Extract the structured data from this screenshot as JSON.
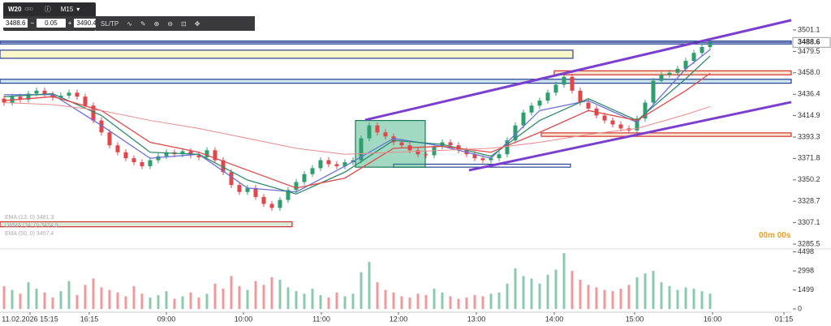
{
  "toolbar": {
    "symbol": "W20",
    "symbol_type": "CFD",
    "timeframe": "M15",
    "bid": "3488.6",
    "minus": "−",
    "lot": "0.05",
    "plus": "+",
    "ask": "3490.4",
    "sltp": "SL/TP"
  },
  "countdown": "00m 00s",
  "chart_data": {
    "type": "candlestick",
    "open": [
      3432,
      3428,
      3434,
      3431,
      3437,
      3440,
      3436,
      3433,
      3435,
      3438,
      3434,
      3425,
      3410,
      3398,
      3385,
      3378,
      3372,
      3368,
      3364,
      3370,
      3374,
      3378,
      3376,
      3379,
      3375,
      3373,
      3380,
      3370,
      3358,
      3345,
      3338,
      3342,
      3333,
      3326,
      3322,
      3330,
      3340,
      3348,
      3356,
      3362,
      3370,
      3366,
      3364,
      3368,
      3370,
      3392,
      3405,
      3398,
      3394,
      3388,
      3385,
      3380,
      3376,
      3375,
      3384,
      3388,
      3385,
      3380,
      3376,
      3372,
      3370,
      3372,
      3376,
      3390,
      3405,
      3418,
      3425,
      3430,
      3438,
      3446,
      3454,
      3440,
      3428,
      3422,
      3415,
      3410,
      3406,
      3402,
      3400,
      3412,
      3428,
      3450,
      3456,
      3458,
      3462,
      3470,
      3478,
      3484
    ],
    "high": [
      3435,
      3437,
      3437,
      3440,
      3443,
      3443,
      3439,
      3438,
      3441,
      3441,
      3437,
      3428,
      3413,
      3401,
      3388,
      3381,
      3375,
      3371,
      3373,
      3377,
      3381,
      3381,
      3382,
      3382,
      3378,
      3383,
      3383,
      3373,
      3361,
      3348,
      3345,
      3345,
      3336,
      3329,
      3333,
      3343,
      3351,
      3359,
      3365,
      3373,
      3373,
      3369,
      3371,
      3373,
      3395,
      3408,
      3408,
      3401,
      3397,
      3391,
      3388,
      3383,
      3379,
      3387,
      3391,
      3391,
      3388,
      3383,
      3379,
      3375,
      3375,
      3379,
      3393,
      3408,
      3421,
      3428,
      3433,
      3441,
      3449,
      3457,
      3457,
      3443,
      3431,
      3425,
      3418,
      3413,
      3409,
      3405,
      3415,
      3431,
      3453,
      3459,
      3461,
      3465,
      3473,
      3481,
      3487,
      3491.6
    ],
    "low": [
      3425,
      3425,
      3428,
      3428,
      3434,
      3433,
      3430,
      3430,
      3432,
      3431,
      3422,
      3407,
      3395,
      3382,
      3375,
      3369,
      3365,
      3361,
      3361,
      3367,
      3371,
      3373,
      3373,
      3372,
      3370,
      3370,
      3367,
      3355,
      3342,
      3335,
      3335,
      3330,
      3323,
      3319,
      3319,
      3327,
      3337,
      3345,
      3353,
      3359,
      3363,
      3361,
      3361,
      3365,
      3367,
      3389,
      3395,
      3391,
      3385,
      3382,
      3377,
      3373,
      3372,
      3372,
      3381,
      3382,
      3377,
      3373,
      3369,
      3367,
      3367,
      3369,
      3373,
      3387,
      3402,
      3415,
      3422,
      3427,
      3435,
      3443,
      3437,
      3425,
      3419,
      3412,
      3407,
      3403,
      3399,
      3397,
      3397,
      3409,
      3425,
      3447,
      3453,
      3455,
      3459,
      3467,
      3475,
      3481
    ],
    "close": [
      3428,
      3434,
      3431,
      3437,
      3440,
      3436,
      3433,
      3435,
      3438,
      3434,
      3425,
      3410,
      3398,
      3385,
      3378,
      3372,
      3368,
      3364,
      3370,
      3374,
      3378,
      3376,
      3379,
      3375,
      3373,
      3380,
      3370,
      3358,
      3345,
      3338,
      3342,
      3333,
      3326,
      3322,
      3330,
      3340,
      3348,
      3356,
      3362,
      3370,
      3366,
      3364,
      3368,
      3370,
      3392,
      3405,
      3398,
      3394,
      3388,
      3385,
      3380,
      3376,
      3375,
      3384,
      3388,
      3385,
      3380,
      3376,
      3372,
      3370,
      3372,
      3376,
      3390,
      3405,
      3418,
      3425,
      3430,
      3438,
      3446,
      3454,
      3440,
      3428,
      3422,
      3415,
      3410,
      3406,
      3402,
      3400,
      3412,
      3428,
      3450,
      3456,
      3458,
      3462,
      3470,
      3478,
      3484,
      3488.6
    ],
    "volume": [
      1800,
      1500,
      1200,
      2100,
      1600,
      1300,
      900,
      1400,
      2200,
      1100,
      1900,
      2400,
      1700,
      1500,
      1300,
      1000,
      1800,
      1200,
      900,
      1100,
      1400,
      800,
      1000,
      1300,
      900,
      1200,
      2000,
      1600,
      2600,
      1800,
      1500,
      2200,
      1900,
      2500,
      2300,
      1700,
      1400,
      1200,
      1600,
      1100,
      900,
      1300,
      1000,
      1200,
      2900,
      3700,
      2100,
      1500,
      1300,
      1000,
      900,
      1200,
      1100,
      1600,
      1300,
      1000,
      800,
      900,
      1100,
      1000,
      1200,
      1300,
      2000,
      3200,
      2600,
      2400,
      2000,
      2700,
      3100,
      4400,
      3000,
      2300,
      1900,
      1700,
      1500,
      1400,
      1600,
      1900,
      2500,
      2800,
      3000,
      2100,
      1800,
      1500,
      1700,
      1600,
      1400,
      1200
    ],
    "ma_x": [
      0,
      6,
      12,
      18,
      24,
      30,
      36,
      42,
      48,
      54,
      60,
      66,
      72,
      78,
      84,
      87
    ],
    "series": [
      {
        "name": "EMA (13, 0) 3481.3",
        "color": "#6b6fd8",
        "values": [
          3436,
          3436,
          3405,
          3372,
          3376,
          3342,
          3338,
          3364,
          3392,
          3384,
          3372,
          3420,
          3430,
          3408,
          3462,
          3481.3
        ]
      },
      {
        "name": "LWMA (34, 0) 3474.9",
        "color": "#2e8b6e",
        "values": [
          3434,
          3437,
          3415,
          3378,
          3376,
          3350,
          3336,
          3358,
          3390,
          3386,
          3374,
          3410,
          3432,
          3410,
          3452,
          3474.9
        ]
      },
      {
        "name": "EMA (50, 0) 3457.4",
        "color": "#e04848",
        "values": [
          3430,
          3434,
          3420,
          3388,
          3378,
          3360,
          3342,
          3352,
          3382,
          3384,
          3378,
          3398,
          3420,
          3410,
          3440,
          3457.4
        ]
      },
      {
        "color": "#e88a8a",
        "values": [
          3428,
          3426,
          3420,
          3410,
          3402,
          3392,
          3382,
          3376,
          3378,
          3380,
          3382,
          3388,
          3396,
          3402,
          3416,
          3424
        ]
      }
    ],
    "trendlines": [
      {
        "color": "#7b3fd0",
        "x": [
          44.5,
          97
        ],
        "y": [
          3410.5,
          3511
        ]
      },
      {
        "color": "#7b3fd0",
        "x": [
          57.3,
          97
        ],
        "y": [
          3359.9,
          3428.5
        ]
      }
    ],
    "zones": [
      {
        "x": [
          -0.5,
          97
        ],
        "y": [
          3487,
          3490
        ],
        "fill": "#c9d8ef",
        "stroke": "#2a3f8f"
      },
      {
        "x": [
          -0.5,
          70.1
        ],
        "y": [
          3472.6,
          3480.8
        ],
        "fill": "#fbf6c9",
        "stroke": "#2a3f8f"
      },
      {
        "x": [
          -0.5,
          97
        ],
        "y": [
          3447.5,
          3451.5
        ],
        "fill": "#c9e3ef",
        "stroke": "#2a3f8f"
      },
      {
        "x": [
          67.8,
          97
        ],
        "y": [
          3456,
          3460
        ],
        "fill": "#f6e3c9",
        "stroke": "#d03030"
      },
      {
        "x": [
          66.2,
          97
        ],
        "y": [
          3394,
          3397.5
        ],
        "fill": "#f6e3c9",
        "stroke": "#d03030"
      },
      {
        "x": [
          -0.5,
          35.5
        ],
        "y": [
          3303,
          3308
        ],
        "fill": "#d8ecd8",
        "stroke": "#d03030"
      },
      {
        "x": [
          48,
          69.8
        ],
        "y": [
          3363,
          3366
        ],
        "fill": "#ffffff",
        "stroke": "#2a3f8f"
      },
      {
        "x": [
          43.3,
          51.9
        ],
        "y": [
          3363,
          3410
        ],
        "fill": "rgba(46,170,120,0.45)",
        "stroke": "#1e7a56"
      }
    ],
    "up_color": "#2e9e6e",
    "down_color": "#e0464a",
    "last_price": {
      "value": 3488.6,
      "label": "3488.6"
    },
    "xlim": [
      -0.5,
      97
    ],
    "ylim": [
      3278.2,
      3531.3
    ],
    "yticks": [
      {
        "value": 3501.1,
        "label": "3501.1"
      },
      {
        "value": 3479.5,
        "label": "3479.5"
      },
      {
        "value": 3458.0,
        "label": "3458.0"
      },
      {
        "value": 3436.4,
        "label": "3436.4"
      },
      {
        "value": 3414.9,
        "label": "3414.9"
      },
      {
        "value": 3393.3,
        "label": "3393.3"
      },
      {
        "value": 3371.8,
        "label": "3371.8"
      },
      {
        "value": 3350.2,
        "label": "3350.2"
      },
      {
        "value": 3328.7,
        "label": "3328.7"
      },
      {
        "value": 3307.1,
        "label": "3307.1"
      },
      {
        "value": 3285.5,
        "label": "3285.5"
      }
    ],
    "y2lim": [
      0,
      4600
    ],
    "y2ticks": [
      4498,
      2998,
      1499,
      0
    ],
    "xticks": [
      {
        "value": 3.2,
        "label": "11.02.2026 15:15"
      },
      {
        "value": 10.5,
        "label": "16:15"
      },
      {
        "value": 20,
        "label": "09:00"
      },
      {
        "value": 29.5,
        "label": "10:00"
      },
      {
        "value": 39.1,
        "label": "11:00"
      },
      {
        "value": 48.6,
        "label": "12:00"
      },
      {
        "value": 58.2,
        "label": "13:00"
      },
      {
        "value": 67.8,
        "label": "14:00"
      },
      {
        "value": 77.7,
        "label": "15:00"
      },
      {
        "value": 87.3,
        "label": "16:00"
      },
      {
        "value": 96.1,
        "label": "01:15"
      }
    ]
  }
}
